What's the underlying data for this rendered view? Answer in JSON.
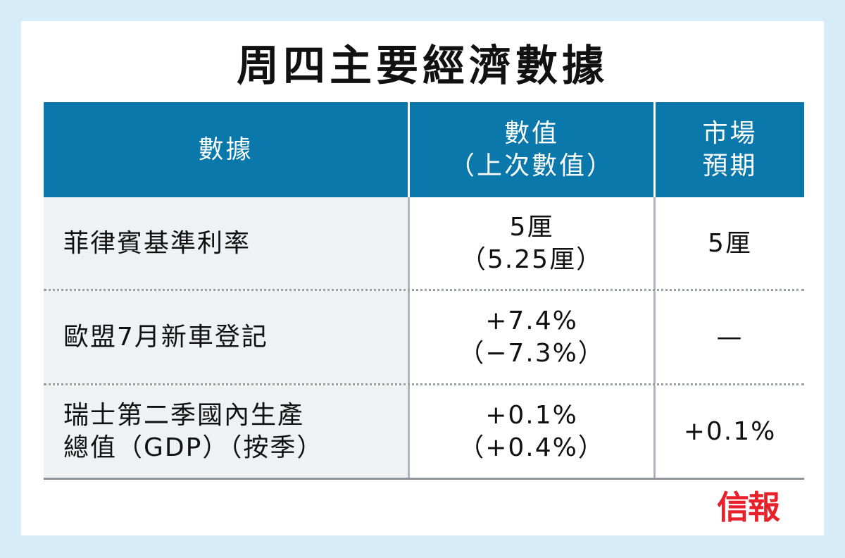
{
  "title": "周四主要經濟數據",
  "table": {
    "headers": {
      "col1": "數據",
      "col2_line1": "數值",
      "col2_line2": "（上次數值）",
      "col3_line1": "市場",
      "col3_line2": "預期"
    },
    "rows": [
      {
        "name_line1": "菲律賓基準利率",
        "name_line2": "",
        "value": "5厘",
        "previous": "（5.25厘）",
        "expected": "5厘"
      },
      {
        "name_line1": "歐盟7月新車登記",
        "name_line2": "",
        "value": "+7.4%",
        "previous": "（−7.3%）",
        "expected": "—"
      },
      {
        "name_line1": "瑞士第二季國內生產",
        "name_line2": "總值（GDP）（按季）",
        "value": "+0.1%",
        "previous": "（+0.4%）",
        "expected": "+0.1%"
      }
    ]
  },
  "logo_text": "信報",
  "colors": {
    "header_bg": "#0a78aa",
    "background": "#d6ecf8",
    "logo": "#e8202a"
  }
}
